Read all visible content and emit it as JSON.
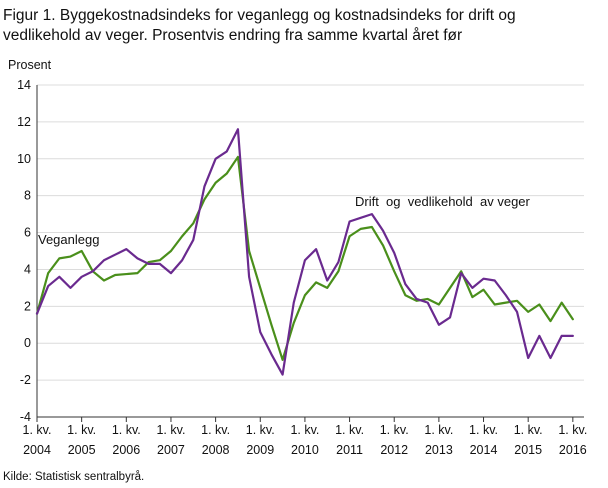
{
  "title_lines": [
    "Figur 1. Byggekostnadsindeks for veganlegg og kostnadsindeks for drift og",
    "vedlikehold av veger. Prosentvis endring fra samme kvartal året før"
  ],
  "source": "Kilde: Statistisk sentralbyrå.",
  "colors": {
    "veganlegg": "#4a8f1b",
    "drift": "#6a2a8f",
    "grid": "#dcdcdc",
    "axis": "#333333"
  },
  "chart_data": {
    "type": "line",
    "title": "Figur 1. Byggekostnadsindeks for veganlegg og kostnadsindeks for drift og vedlikehold av veger. Prosentvis endring fra samme kvartal året før",
    "ylabel": "Prosent",
    "xlabel": "",
    "ylim": [
      -4,
      14
    ],
    "yticks": [
      -4,
      -2,
      0,
      2,
      4,
      6,
      8,
      10,
      12,
      14
    ],
    "grid": true,
    "x_tick_labels": [
      {
        "q": 0,
        "line1": "1. kv.",
        "line2": "2004"
      },
      {
        "q": 4,
        "line1": "1. kv.",
        "line2": "2005"
      },
      {
        "q": 8,
        "line1": "1. kv.",
        "line2": "2006"
      },
      {
        "q": 12,
        "line1": "1. kv.",
        "line2": "2007"
      },
      {
        "q": 16,
        "line1": "1. kv.",
        "line2": "2008"
      },
      {
        "q": 20,
        "line1": "1. kv.",
        "line2": "2009"
      },
      {
        "q": 24,
        "line1": "1. kv.",
        "line2": "2010"
      },
      {
        "q": 28,
        "line1": "1. kv.",
        "line2": "2011"
      },
      {
        "q": 32,
        "line1": "1. kv.",
        "line2": "2012"
      },
      {
        "q": 36,
        "line1": "1. kv.",
        "line2": "2013"
      },
      {
        "q": 40,
        "line1": "1. kv.",
        "line2": "2014"
      },
      {
        "q": 44,
        "line1": "1. kv.",
        "line2": "2015"
      },
      {
        "q": 48,
        "line1": "1. kv.",
        "line2": "2016"
      }
    ],
    "quarters_count": 50,
    "series": [
      {
        "name": "Veganlegg",
        "color": "#4a8f1b",
        "values": [
          1.6,
          3.8,
          4.6,
          4.7,
          5.0,
          3.9,
          3.4,
          3.7,
          3.75,
          3.8,
          4.4,
          4.5,
          5.0,
          5.8,
          6.5,
          7.8,
          8.7,
          9.2,
          10.1,
          5.0,
          3.0,
          1.0,
          -0.9,
          1.1,
          2.6,
          3.3,
          3.0,
          3.9,
          5.8,
          6.2,
          6.3,
          5.3,
          3.9,
          2.6,
          2.3,
          2.4,
          2.1,
          3.0,
          3.9,
          2.5,
          2.9,
          2.1,
          2.2,
          2.3,
          1.7,
          2.1,
          1.2,
          2.2,
          1.3
        ]
      },
      {
        "name": "Drift og vedlikehold av veger",
        "color": "#6a2a8f",
        "values": [
          1.6,
          3.1,
          3.6,
          3.0,
          3.6,
          3.9,
          4.5,
          4.8,
          5.1,
          4.6,
          4.3,
          4.3,
          3.8,
          4.5,
          5.6,
          8.5,
          10.0,
          10.4,
          11.6,
          3.6,
          0.6,
          -0.6,
          -1.7,
          2.2,
          4.5,
          5.1,
          3.4,
          4.4,
          6.6,
          6.8,
          7.0,
          6.1,
          4.9,
          3.2,
          2.4,
          2.2,
          1.0,
          1.4,
          3.8,
          3.0,
          3.5,
          3.4,
          2.6,
          1.7,
          -0.8,
          0.4,
          -0.8,
          0.4,
          0.4
        ]
      }
    ],
    "annotations": [
      "Veganlegg",
      "Drift  og  vedlikehold  av veger"
    ]
  }
}
